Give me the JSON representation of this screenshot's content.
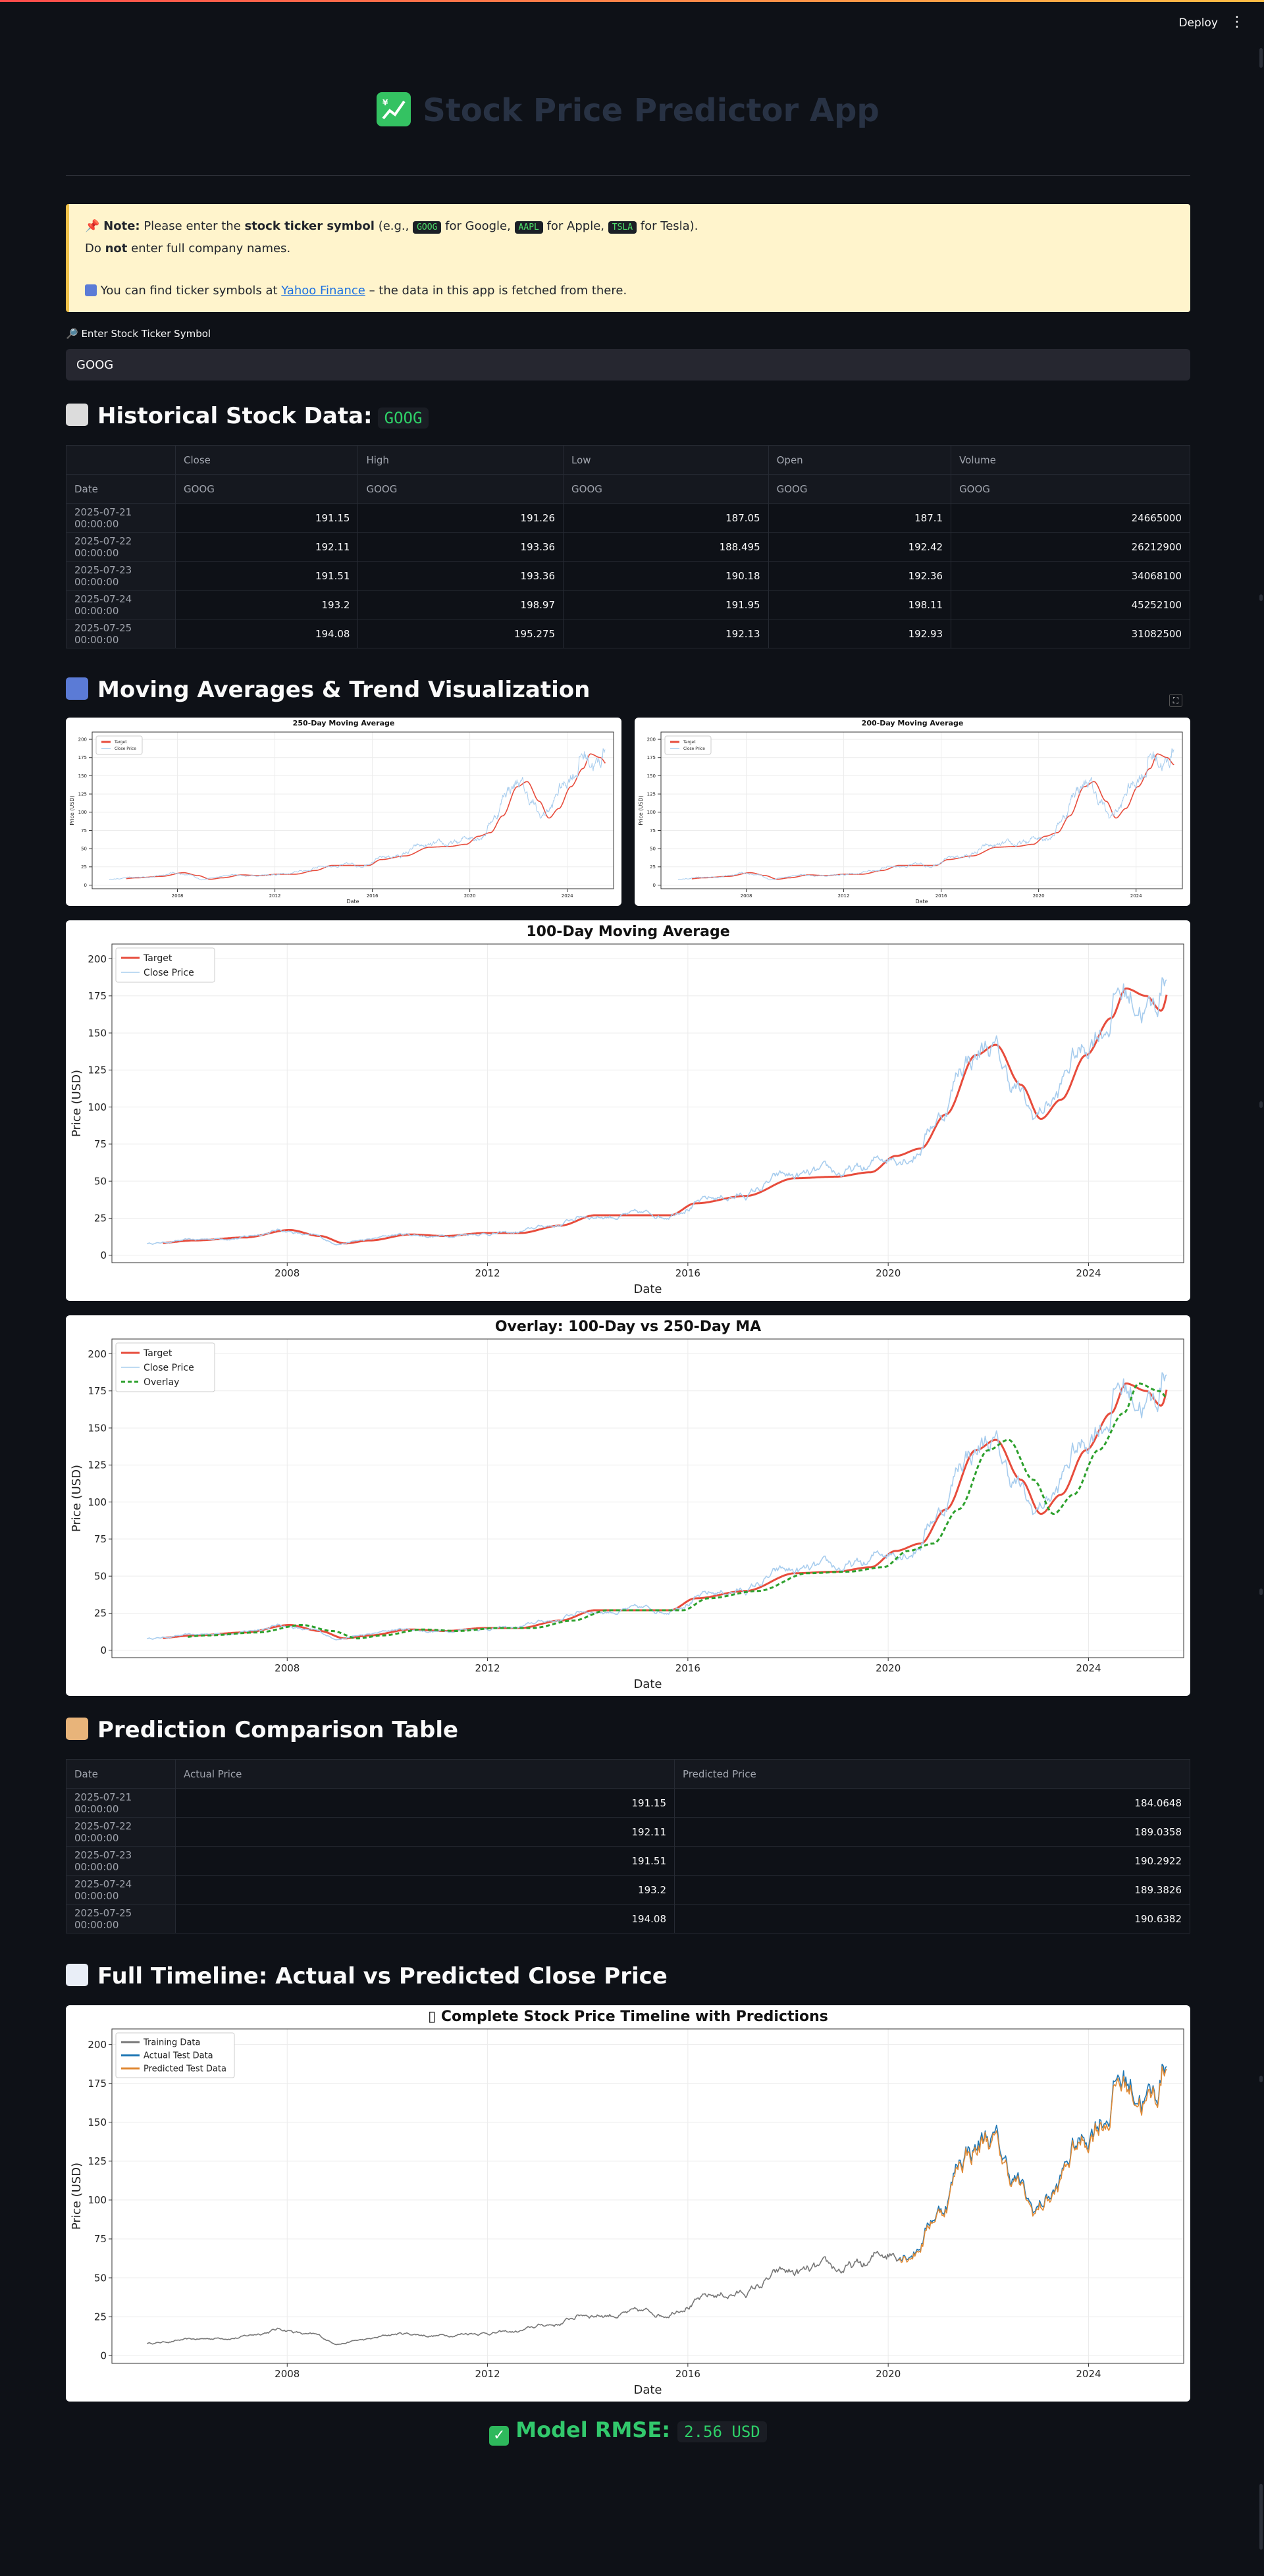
{
  "header": {
    "deploy_label": "Deploy",
    "menu_icon": "kebab-menu-icon"
  },
  "title": {
    "text": "Stock Price Predictor App",
    "icon": "chart-increasing-icon"
  },
  "note": {
    "pin_icon": "pushpin-icon",
    "bold_note": "Note:",
    "line1_a": " Please enter the ",
    "line1_bold": "stock ticker symbol",
    "line1_b": " (e.g., ",
    "ex1": "GOOG",
    "ex1_text": " for Google, ",
    "ex2": "AAPL",
    "ex2_text": " for Apple, ",
    "ex3": "TSLA",
    "ex3_text": " for Tesla).",
    "line2_a": "Do ",
    "line2_bold": "not",
    "line2_b": " enter full company names.",
    "line3_icon": "bar-chart-icon",
    "line3_a": " You can find ticker symbols at ",
    "line3_link": "Yahoo Finance",
    "line3_b": " – the data in this app is fetched from there."
  },
  "ticker_input": {
    "label": "🔎 Enter Stock Ticker Symbol",
    "value": "GOOG"
  },
  "historical": {
    "heading": "Historical Stock Data:",
    "ticker": "GOOG",
    "columns": [
      "Close",
      "High",
      "Low",
      "Open",
      "Volume"
    ],
    "subheader_index": "Date",
    "subheader": [
      "GOOG",
      "GOOG",
      "GOOG",
      "GOOG",
      "GOOG"
    ],
    "rows": [
      [
        "2025-07-21 00:00:00",
        "191.15",
        "191.26",
        "187.05",
        "187.1",
        "24665000"
      ],
      [
        "2025-07-22 00:00:00",
        "192.11",
        "193.36",
        "188.495",
        "192.42",
        "26212900"
      ],
      [
        "2025-07-23 00:00:00",
        "191.51",
        "193.36",
        "190.18",
        "192.36",
        "34068100"
      ],
      [
        "2025-07-24 00:00:00",
        "193.2",
        "198.97",
        "191.95",
        "198.11",
        "45252100"
      ],
      [
        "2025-07-25 00:00:00",
        "194.08",
        "195.275",
        "192.13",
        "192.93",
        "31082500"
      ]
    ]
  },
  "ma_section": {
    "heading": "Moving Averages & Trend Visualization"
  },
  "prediction": {
    "heading": "Prediction Comparison Table",
    "columns": [
      "Date",
      "Actual Price",
      "Predicted Price"
    ],
    "rows": [
      [
        "2025-07-21 00:00:00",
        "191.15",
        "184.0648"
      ],
      [
        "2025-07-22 00:00:00",
        "192.11",
        "189.0358"
      ],
      [
        "2025-07-23 00:00:00",
        "191.51",
        "190.2922"
      ],
      [
        "2025-07-24 00:00:00",
        "193.2",
        "189.3826"
      ],
      [
        "2025-07-25 00:00:00",
        "194.08",
        "190.6382"
      ]
    ]
  },
  "timeline": {
    "heading": "Full Timeline: Actual vs Predicted Close Price"
  },
  "rmse": {
    "label": "Model RMSE:",
    "value": "2.56 USD"
  },
  "chart_data": [
    {
      "type": "line",
      "title": "250-Day Moving Average",
      "xlabel": "Date",
      "ylabel": "Price (USD)",
      "xticks": [
        "2008",
        "2012",
        "2016",
        "2020",
        "2024"
      ],
      "yticks": [
        0,
        25,
        50,
        75,
        100,
        125,
        150,
        175,
        200
      ],
      "xlim": [
        2004.5,
        2025.9
      ],
      "ylim": [
        -5,
        210
      ],
      "series": [
        {
          "name": "Target",
          "color": "#e74c3c",
          "kind": "ma",
          "lag": 0.7
        },
        {
          "name": "Close Price",
          "color": "#a8cdee",
          "kind": "close"
        }
      ],
      "legend": "top-left",
      "grid": true
    },
    {
      "type": "line",
      "title": "200-Day Moving Average",
      "xlabel": "Date",
      "ylabel": "Price (USD)",
      "xticks": [
        "2008",
        "2012",
        "2016",
        "2020",
        "2024"
      ],
      "yticks": [
        0,
        25,
        50,
        75,
        100,
        125,
        150,
        175,
        200
      ],
      "xlim": [
        2004.5,
        2025.9
      ],
      "ylim": [
        -5,
        210
      ],
      "series": [
        {
          "name": "Target",
          "color": "#e74c3c",
          "kind": "ma",
          "lag": 0.55
        },
        {
          "name": "Close Price",
          "color": "#a8cdee",
          "kind": "close"
        }
      ],
      "legend": "top-left",
      "grid": true
    },
    {
      "type": "line",
      "title": "100-Day Moving Average",
      "xlabel": "Date",
      "ylabel": "Price (USD)",
      "xticks": [
        "2008",
        "2012",
        "2016",
        "2020",
        "2024"
      ],
      "yticks": [
        0,
        25,
        50,
        75,
        100,
        125,
        150,
        175,
        200
      ],
      "xlim": [
        2004.5,
        2025.9
      ],
      "ylim": [
        -5,
        210
      ],
      "series": [
        {
          "name": "Target",
          "color": "#e74c3c",
          "kind": "ma",
          "lag": 0.3
        },
        {
          "name": "Close Price",
          "color": "#a8cdee",
          "kind": "close"
        }
      ],
      "legend": "top-left",
      "grid": true
    },
    {
      "type": "line",
      "title": "Overlay: 100-Day vs 250-Day MA",
      "xlabel": "Date",
      "ylabel": "Price (USD)",
      "xticks": [
        "2008",
        "2012",
        "2016",
        "2020",
        "2024"
      ],
      "yticks": [
        0,
        25,
        50,
        75,
        100,
        125,
        150,
        175,
        200
      ],
      "xlim": [
        2004.5,
        2025.9
      ],
      "ylim": [
        -5,
        210
      ],
      "series": [
        {
          "name": "Target",
          "color": "#e74c3c",
          "kind": "ma",
          "lag": 0.3
        },
        {
          "name": "Close Price",
          "color": "#a8cdee",
          "kind": "close"
        },
        {
          "name": "Overlay",
          "color": "#2ca02c",
          "kind": "ma",
          "lag": 0.8,
          "dashed": true
        }
      ],
      "legend": "top-left",
      "grid": true
    },
    {
      "type": "line",
      "title": "Complete Stock Price Timeline with Predictions",
      "title_prefix": "▯ ",
      "xlabel": "Date",
      "ylabel": "Price (USD)",
      "xticks": [
        "2008",
        "2012",
        "2016",
        "2020",
        "2024"
      ],
      "yticks": [
        0,
        25,
        50,
        75,
        100,
        125,
        150,
        175,
        200
      ],
      "xlim": [
        2004.5,
        2025.9
      ],
      "ylim": [
        -5,
        210
      ],
      "split_year": 2020.2,
      "series": [
        {
          "name": "Training Data",
          "color": "#777777",
          "kind": "train"
        },
        {
          "name": "Actual Test Data",
          "color": "#1f77b4",
          "kind": "test"
        },
        {
          "name": "Predicted Test Data",
          "color": "#e08a35",
          "kind": "pred"
        }
      ],
      "legend": "top-left",
      "grid": true
    }
  ]
}
